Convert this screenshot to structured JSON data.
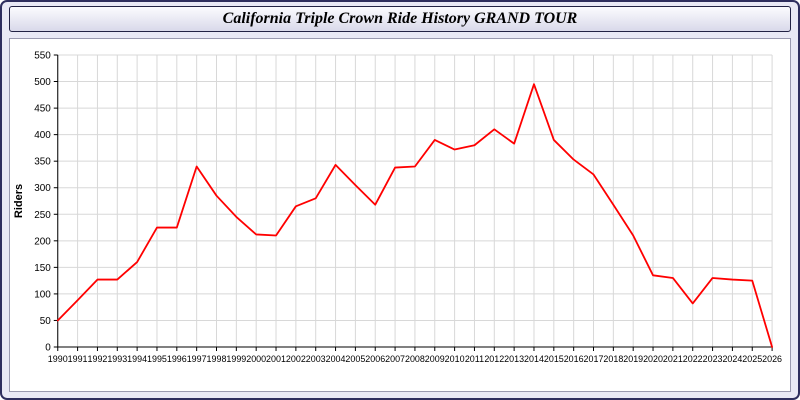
{
  "window": {
    "title": "California Triple Crown Ride History GRAND TOUR"
  },
  "colors": {
    "window_background": "#e9e9f5",
    "window_border": "#2e2e5e",
    "panel_background": "#ffffff",
    "line": "#ff0000",
    "grid": "#d8d8d8",
    "axis": "#000000"
  },
  "chart_data": {
    "type": "line",
    "title": "California Triple Crown Ride History GRAND TOUR",
    "xlabel": "",
    "ylabel": "Riders",
    "ylim": [
      0,
      550
    ],
    "ytick_step": 50,
    "grid": true,
    "grid_color": "#d8d8d8",
    "legend": "none",
    "x": [
      1990,
      1991,
      1992,
      1993,
      1994,
      1995,
      1996,
      1997,
      1998,
      1999,
      2000,
      2001,
      2002,
      2003,
      2004,
      2005,
      2006,
      2007,
      2008,
      2009,
      2010,
      2011,
      2012,
      2013,
      2014,
      2015,
      2016,
      2017,
      2018,
      2019,
      2020,
      2021,
      2022,
      2023,
      2024,
      2025,
      2026
    ],
    "series": [
      {
        "name": "Riders",
        "color": "#ff0000",
        "values": [
          50,
          88,
          127,
          127,
          160,
          225,
          225,
          340,
          285,
          245,
          212,
          210,
          265,
          280,
          343,
          305,
          268,
          338,
          340,
          390,
          372,
          380,
          410,
          383,
          495,
          390,
          353,
          325,
          268,
          210,
          135,
          130,
          82,
          130,
          127,
          125,
          0
        ]
      }
    ]
  }
}
